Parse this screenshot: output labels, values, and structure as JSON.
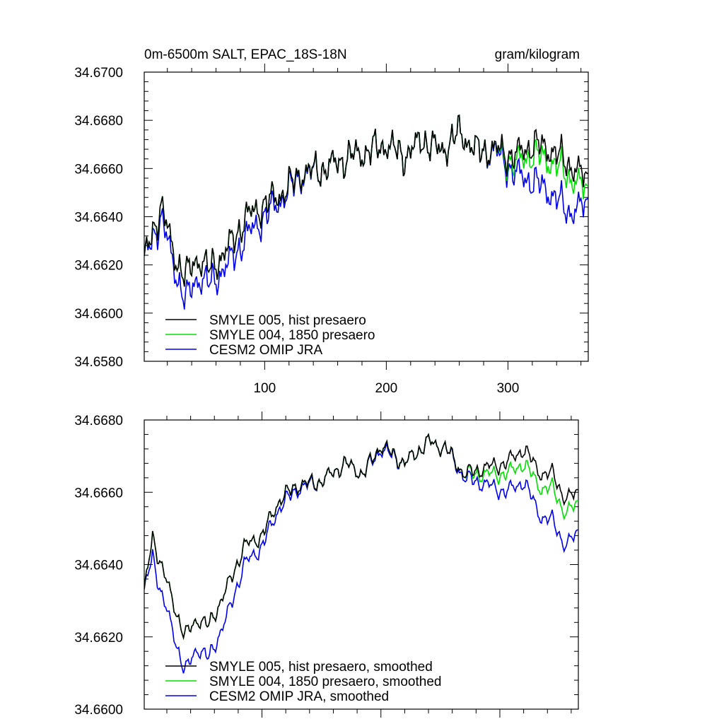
{
  "figure": {
    "title_left": "0m-6500m SALT, EPAC_18S-18N",
    "title_right": "gram/kilogram"
  },
  "chart_data": [
    {
      "type": "line",
      "xlim": [
        1,
        366
      ],
      "ylim": [
        34.658,
        34.67
      ],
      "yticks": [
        34.658,
        34.66,
        34.662,
        34.664,
        34.666,
        34.668,
        34.67
      ],
      "ytick_labels": [
        "34.6580",
        "34.6600",
        "34.6620",
        "34.6640",
        "34.6660",
        "34.6680",
        "34.6700"
      ],
      "xticks": [
        100,
        200,
        300
      ],
      "xtick_labels": [
        "100",
        "200",
        "300"
      ],
      "legend_position": "bottom-left",
      "noise_amplitude": 0.0008,
      "series": [
        {
          "name": "SMYLE 005, hist presaero",
          "color": "#000000",
          "x": [
            1,
            15,
            25,
            35,
            45,
            55,
            70,
            85,
            100,
            115,
            130,
            150,
            170,
            185,
            200,
            215,
            230,
            245,
            260,
            275,
            290,
            305,
            320,
            335,
            350,
            366
          ],
          "y": [
            34.6622,
            34.6645,
            34.6625,
            34.6615,
            34.6623,
            34.6618,
            34.6627,
            34.664,
            34.6645,
            34.665,
            34.6658,
            34.666,
            34.6665,
            34.6667,
            34.667,
            34.6665,
            34.6672,
            34.6667,
            34.6675,
            34.6667,
            34.6668,
            34.6665,
            34.667,
            34.6668,
            34.6662,
            34.6655
          ]
        },
        {
          "name": "SMYLE 004, 1850 presaero",
          "color": "#00e000",
          "x": [
            1,
            15,
            25,
            35,
            45,
            55,
            70,
            85,
            100,
            115,
            130,
            150,
            170,
            185,
            200,
            215,
            230,
            245,
            260,
            275,
            290,
            305,
            320,
            335,
            350,
            366
          ],
          "y": [
            34.6622,
            34.6645,
            34.6625,
            34.6615,
            34.6623,
            34.6618,
            34.6627,
            34.664,
            34.6645,
            34.665,
            34.6658,
            34.666,
            34.6665,
            34.6667,
            34.667,
            34.6665,
            34.6672,
            34.6667,
            34.6675,
            34.6667,
            34.6668,
            34.6662,
            34.6666,
            34.6663,
            34.6657,
            34.665
          ]
        },
        {
          "name": "CESM2 OMIP JRA",
          "color": "#0000ee",
          "x": [
            1,
            15,
            25,
            35,
            45,
            55,
            70,
            85,
            100,
            115,
            130,
            150,
            170,
            185,
            200,
            215,
            230,
            245,
            260,
            275,
            290,
            305,
            320,
            335,
            350,
            366
          ],
          "y": [
            34.6622,
            34.664,
            34.662,
            34.6605,
            34.6615,
            34.6612,
            34.662,
            34.6632,
            34.664,
            34.6648,
            34.6657,
            34.666,
            34.6665,
            34.6667,
            34.667,
            34.6665,
            34.6672,
            34.6667,
            34.6675,
            34.6667,
            34.6667,
            34.6658,
            34.6655,
            34.665,
            34.6642,
            34.6645
          ]
        }
      ]
    },
    {
      "type": "line",
      "xlim": [
        1,
        366
      ],
      "ylim": [
        34.66,
        34.668
      ],
      "yticks": [
        34.66,
        34.662,
        34.664,
        34.666,
        34.668
      ],
      "ytick_labels": [
        "34.6600",
        "34.6620",
        "34.6640",
        "34.6660",
        "34.6680"
      ],
      "xticks": [
        100,
        200,
        300
      ],
      "xtick_labels": [
        "",
        "",
        ""
      ],
      "legend_position": "bottom-left",
      "noise_amplitude": 0.0003,
      "series": [
        {
          "name": "SMYLE 005, hist presaero, smoothed",
          "color": "#000000",
          "x": [
            1,
            8,
            15,
            25,
            35,
            45,
            55,
            70,
            85,
            100,
            115,
            130,
            150,
            170,
            185,
            200,
            220,
            240,
            255,
            270,
            290,
            305,
            320,
            335,
            345,
            355,
            366
          ],
          "y": [
            34.6632,
            34.6648,
            34.664,
            34.663,
            34.662,
            34.6625,
            34.6623,
            34.6633,
            34.6645,
            34.6648,
            34.6658,
            34.6662,
            34.6663,
            34.6668,
            34.6665,
            34.6673,
            34.6668,
            34.6674,
            34.6672,
            34.6665,
            34.6667,
            34.6668,
            34.6672,
            34.6665,
            34.6665,
            34.6658,
            34.666
          ]
        },
        {
          "name": "SMYLE 004, 1850 presaero, smoothed",
          "color": "#00e000",
          "x": [
            1,
            8,
            15,
            25,
            35,
            45,
            55,
            70,
            85,
            100,
            115,
            130,
            150,
            170,
            185,
            200,
            220,
            240,
            255,
            270,
            290,
            305,
            320,
            335,
            345,
            355,
            366
          ],
          "y": [
            34.6632,
            34.6648,
            34.664,
            34.663,
            34.662,
            34.6625,
            34.6623,
            34.6633,
            34.6645,
            34.6648,
            34.6658,
            34.6662,
            34.6663,
            34.6668,
            34.6665,
            34.6673,
            34.6668,
            34.6674,
            34.6672,
            34.6665,
            34.6665,
            34.6665,
            34.6668,
            34.6661,
            34.6661,
            34.6654,
            34.6657
          ]
        },
        {
          "name": "CESM2 OMIP JRA, smoothed",
          "color": "#0000ee",
          "x": [
            1,
            8,
            15,
            25,
            35,
            45,
            55,
            70,
            85,
            100,
            115,
            130,
            150,
            170,
            185,
            200,
            220,
            240,
            255,
            270,
            290,
            305,
            320,
            335,
            345,
            355,
            366
          ],
          "y": [
            34.6632,
            34.6643,
            34.6632,
            34.6622,
            34.661,
            34.6617,
            34.6614,
            34.6625,
            34.664,
            34.6645,
            34.6656,
            34.6661,
            34.6663,
            34.6668,
            34.6665,
            34.6672,
            34.6668,
            34.6674,
            34.6672,
            34.6664,
            34.6662,
            34.666,
            34.6663,
            34.6653,
            34.6652,
            34.6645,
            34.6649
          ]
        }
      ]
    }
  ]
}
